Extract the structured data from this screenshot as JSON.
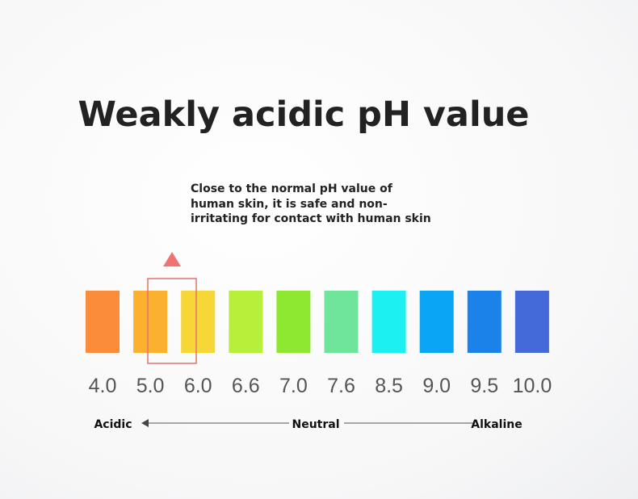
{
  "title": "Weakly acidic pH value",
  "note": [
    "Close to the normal pH value of",
    "human skin, it is safe and non-",
    "irritating for contact with human skin"
  ],
  "scale": [
    {
      "label": "4.0",
      "color": "#fb8c3a"
    },
    {
      "label": "5.0",
      "color": "#fbb030"
    },
    {
      "label": "6.0",
      "color": "#f7d638"
    },
    {
      "label": "6.6",
      "color": "#b6f03a"
    },
    {
      "label": "7.0",
      "color": "#8ee832"
    },
    {
      "label": "7.6",
      "color": "#6ee59a"
    },
    {
      "label": "8.5",
      "color": "#1df0f0"
    },
    {
      "label": "9.0",
      "color": "#0aa6f5"
    },
    {
      "label": "9.5",
      "color": "#1b82ea"
    },
    {
      "label": "10.0",
      "color": "#4469d8"
    }
  ],
  "axis": {
    "left": "Acidic",
    "middle": "Neutral",
    "right": "Alkaline"
  }
}
